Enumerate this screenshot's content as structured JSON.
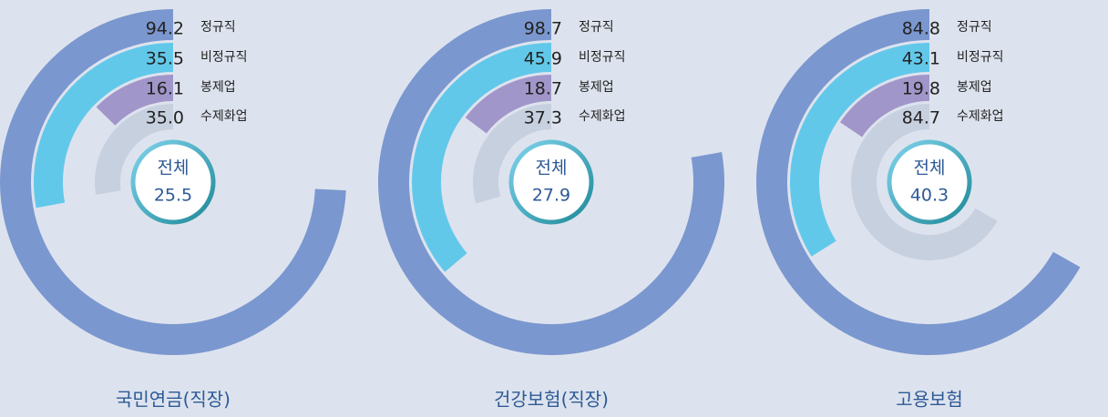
{
  "chart_data": [
    {
      "type": "radial-bar",
      "title": "국민연금(직장)",
      "center_label": "전체",
      "center_value": 25.5,
      "categories": [
        "정규직",
        "비정규직",
        "봉제업",
        "수제화업"
      ],
      "values": [
        94.2,
        35.5,
        16.1,
        35.0
      ],
      "value_labels": [
        "94.2",
        "35.5",
        "16.1",
        "35.0"
      ],
      "colors": [
        "#7b97cf",
        "#62c8ea",
        "#a196c9",
        "#c7d0df"
      ]
    },
    {
      "type": "radial-bar",
      "title": "건강보험(직장)",
      "center_label": "전체",
      "center_value": 27.9,
      "categories": [
        "정규직",
        "비정규직",
        "봉제업",
        "수제화업"
      ],
      "values": [
        98.7,
        45.9,
        18.7,
        37.3
      ],
      "colors": [
        "#7b97cf",
        "#62c8ea",
        "#a196c9",
        "#c7d0df"
      ]
    },
    {
      "type": "radial-bar",
      "title": "고용보험",
      "center_label": "전체",
      "center_value": 40.3,
      "categories": [
        "정규직",
        "비정규직",
        "봉제업",
        "수제화업"
      ],
      "values": [
        84.8,
        43.1,
        19.8,
        84.7
      ],
      "colors": [
        "#7b97cf",
        "#62c8ea",
        "#a196c9",
        "#c7d0df"
      ]
    }
  ]
}
